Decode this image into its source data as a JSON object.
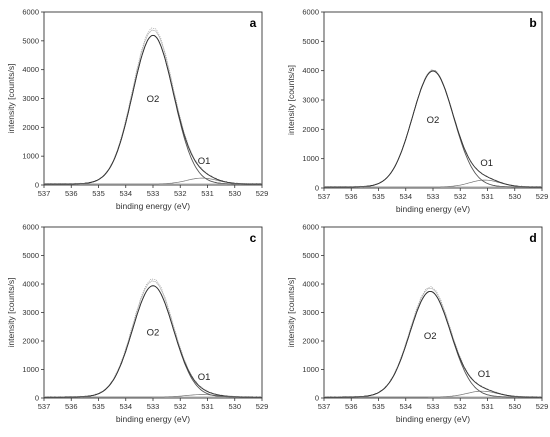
{
  "chart_data": [
    {
      "type": "line",
      "panel_label": "a",
      "xlabel": "binding energy (eV)",
      "ylabel": "intensity [counts/s]",
      "xlim": [
        537,
        529
      ],
      "ylim": [
        0,
        6000
      ],
      "x_ticks": [
        "537",
        "536",
        "535",
        "534",
        "533",
        "532",
        "531",
        "530",
        "529"
      ],
      "y_ticks": [
        "0",
        "1000",
        "2000",
        "3000",
        "4000",
        "5000",
        "6000"
      ],
      "x_reversed": true,
      "grid": false,
      "peaks": [
        {
          "name": "O2",
          "center": 533.0,
          "height": 5150,
          "sigma": 0.75
        },
        {
          "name": "O1",
          "center": 531.2,
          "height": 200,
          "sigma": 0.55
        }
      ],
      "background": 40,
      "measured_peak_max": 5450
    },
    {
      "type": "line",
      "panel_label": "b",
      "xlabel": "binding energy (eV)",
      "ylabel": "intensity [counts/s]",
      "xlim": [
        537,
        529
      ],
      "ylim": [
        0,
        6000
      ],
      "x_ticks": [
        "537",
        "536",
        "535",
        "534",
        "533",
        "532",
        "531",
        "530",
        "529"
      ],
      "y_ticks": [
        "0",
        "1000",
        "2000",
        "3000",
        "4000",
        "5000",
        "6000"
      ],
      "x_reversed": true,
      "grid": false,
      "peaks": [
        {
          "name": "O2",
          "center": 533.0,
          "height": 3950,
          "sigma": 0.75
        },
        {
          "name": "O1",
          "center": 531.1,
          "height": 230,
          "sigma": 0.55
        }
      ],
      "background": 40,
      "measured_peak_max": 4030
    },
    {
      "type": "line",
      "panel_label": "c",
      "xlabel": "binding energy (eV)",
      "ylabel": "intensity [counts/s]",
      "xlim": [
        537,
        529
      ],
      "ylim": [
        0,
        6000
      ],
      "x_ticks": [
        "537",
        "536",
        "535",
        "534",
        "533",
        "532",
        "531",
        "530",
        "529"
      ],
      "y_ticks": [
        "0",
        "1000",
        "2000",
        "3000",
        "4000",
        "5000",
        "6000"
      ],
      "x_reversed": true,
      "grid": false,
      "peaks": [
        {
          "name": "O2",
          "center": 533.0,
          "height": 3900,
          "sigma": 0.75
        },
        {
          "name": "O1",
          "center": 531.2,
          "height": 80,
          "sigma": 0.55
        }
      ],
      "background": 40,
      "measured_peak_max": 4180
    },
    {
      "type": "line",
      "panel_label": "d",
      "xlabel": "binding energy (eV)",
      "ylabel": "intensity [counts/s]",
      "xlim": [
        537,
        529
      ],
      "ylim": [
        0,
        6000
      ],
      "x_ticks": [
        "537",
        "536",
        "535",
        "534",
        "533",
        "532",
        "531",
        "530",
        "529"
      ],
      "y_ticks": [
        "0",
        "1000",
        "2000",
        "3000",
        "4000",
        "5000",
        "6000"
      ],
      "x_reversed": true,
      "grid": false,
      "peaks": [
        {
          "name": "O2",
          "center": 533.1,
          "height": 3700,
          "sigma": 0.75
        },
        {
          "name": "O1",
          "center": 531.2,
          "height": 200,
          "sigma": 0.55
        }
      ],
      "background": 40,
      "measured_peak_max": 3900
    }
  ]
}
